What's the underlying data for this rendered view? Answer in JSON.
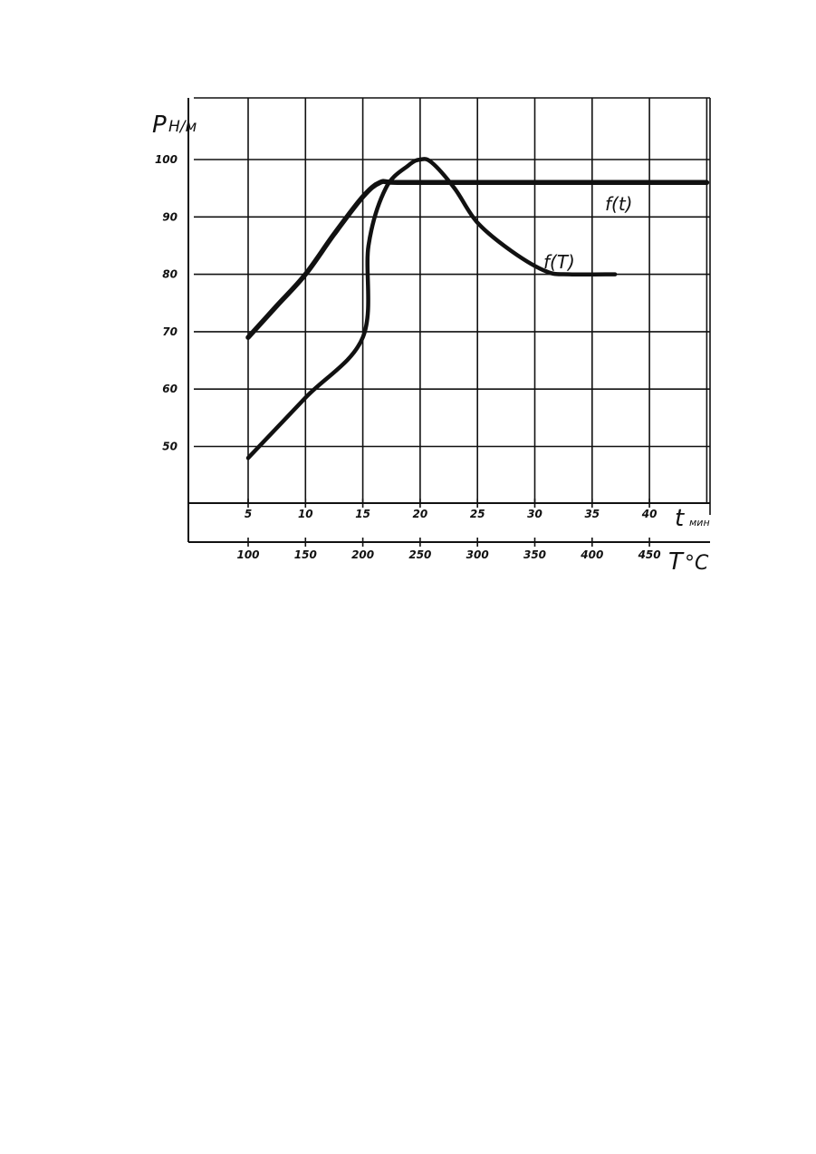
{
  "chart_data": {
    "type": "line",
    "title": "",
    "ylabel": {
      "symbol": "P",
      "unit": "Н/м"
    },
    "ylim": [
      40,
      110
    ],
    "yticks": [
      50,
      60,
      70,
      80,
      90,
      100
    ],
    "x_axes": [
      {
        "id": "t",
        "symbol": "t",
        "unit": "мин",
        "ticks": [
          5,
          10,
          15,
          20,
          25,
          30,
          35,
          40
        ],
        "lim": [
          0,
          45
        ]
      },
      {
        "id": "T",
        "symbol": "T",
        "unit": "°C",
        "ticks": [
          100,
          150,
          200,
          250,
          300,
          350,
          400,
          450
        ],
        "lim": [
          50,
          500
        ]
      }
    ],
    "grid": true,
    "series": [
      {
        "name": "f(t)",
        "x_axis": "t",
        "x": [
          5,
          7.5,
          10,
          12.5,
          15,
          16.5,
          18,
          25,
          30,
          35,
          40,
          45
        ],
        "y": [
          69,
          74.5,
          80,
          87,
          93.5,
          96,
          96,
          96,
          96,
          96,
          96,
          96
        ]
      },
      {
        "name": "f(T)",
        "x_axis": "T",
        "x": [
          100,
          150,
          200,
          205,
          220,
          240,
          250,
          260,
          280,
          300,
          330,
          360,
          380,
          420
        ],
        "y": [
          48,
          58.5,
          69,
          85,
          95,
          99,
          100,
          99.5,
          95,
          89,
          84,
          80.5,
          80,
          80
        ]
      }
    ]
  }
}
